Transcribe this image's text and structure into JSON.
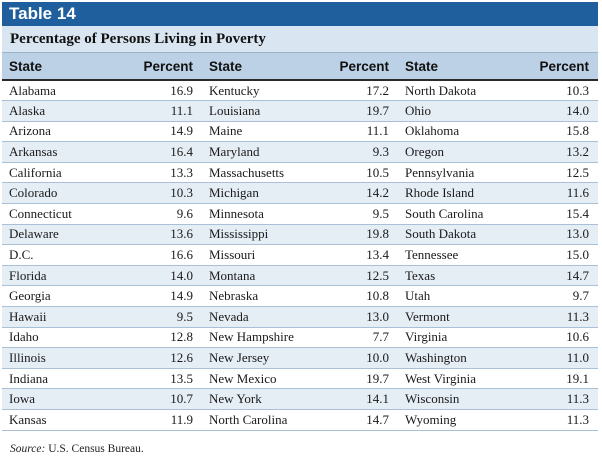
{
  "banner": {
    "title": "Table 14"
  },
  "subtitle": "Percentage of Persons Living in Poverty",
  "columns": {
    "state": "State",
    "percent": "Percent"
  },
  "rows": [
    [
      [
        "Alabama",
        "16.9"
      ],
      [
        "Kentucky",
        "17.2"
      ],
      [
        "North Dakota",
        "10.3"
      ]
    ],
    [
      [
        "Alaska",
        "11.1"
      ],
      [
        "Louisiana",
        "19.7"
      ],
      [
        "Ohio",
        "14.0"
      ]
    ],
    [
      [
        "Arizona",
        "14.9"
      ],
      [
        "Maine",
        "11.1"
      ],
      [
        "Oklahoma",
        "15.8"
      ]
    ],
    [
      [
        "Arkansas",
        "16.4"
      ],
      [
        "Maryland",
        "9.3"
      ],
      [
        "Oregon",
        "13.2"
      ]
    ],
    [
      [
        "California",
        "13.3"
      ],
      [
        "Massachusetts",
        "10.5"
      ],
      [
        "Pennsylvania",
        "12.5"
      ]
    ],
    [
      [
        "Colorado",
        "10.3"
      ],
      [
        "Michigan",
        "14.2"
      ],
      [
        "Rhode Island",
        "11.6"
      ]
    ],
    [
      [
        "Connecticut",
        "9.6"
      ],
      [
        "Minnesota",
        "9.5"
      ],
      [
        "South Carolina",
        "15.4"
      ]
    ],
    [
      [
        "Delaware",
        "13.6"
      ],
      [
        "Mississippi",
        "19.8"
      ],
      [
        "South Dakota",
        "13.0"
      ]
    ],
    [
      [
        "D.C.",
        "16.6"
      ],
      [
        "Missouri",
        "13.4"
      ],
      [
        "Tennessee",
        "15.0"
      ]
    ],
    [
      [
        "Florida",
        "14.0"
      ],
      [
        "Montana",
        "12.5"
      ],
      [
        "Texas",
        "14.7"
      ]
    ],
    [
      [
        "Georgia",
        "14.9"
      ],
      [
        "Nebraska",
        "10.8"
      ],
      [
        "Utah",
        "9.7"
      ]
    ],
    [
      [
        "Hawaii",
        "9.5"
      ],
      [
        "Nevada",
        "13.0"
      ],
      [
        "Vermont",
        "11.3"
      ]
    ],
    [
      [
        "Idaho",
        "12.8"
      ],
      [
        "New Hampshire",
        "7.7"
      ],
      [
        "Virginia",
        "10.6"
      ]
    ],
    [
      [
        "Illinois",
        "12.6"
      ],
      [
        "New Jersey",
        "10.0"
      ],
      [
        "Washington",
        "11.0"
      ]
    ],
    [
      [
        "Indiana",
        "13.5"
      ],
      [
        "New Mexico",
        "19.7"
      ],
      [
        "West Virginia",
        "19.1"
      ]
    ],
    [
      [
        "Iowa",
        "10.7"
      ],
      [
        "New York",
        "14.1"
      ],
      [
        "Wisconsin",
        "11.3"
      ]
    ],
    [
      [
        "Kansas",
        "11.9"
      ],
      [
        "North Carolina",
        "14.7"
      ],
      [
        "Wyoming",
        "11.3"
      ]
    ]
  ],
  "source": {
    "label": "Source:",
    "text": " U.S. Census Bureau."
  },
  "colors": {
    "banner": "#1f5f9e",
    "header": "#bcd0e6",
    "stripe": "#e5edf5",
    "subtitle_bg": "#d9e6f2"
  }
}
